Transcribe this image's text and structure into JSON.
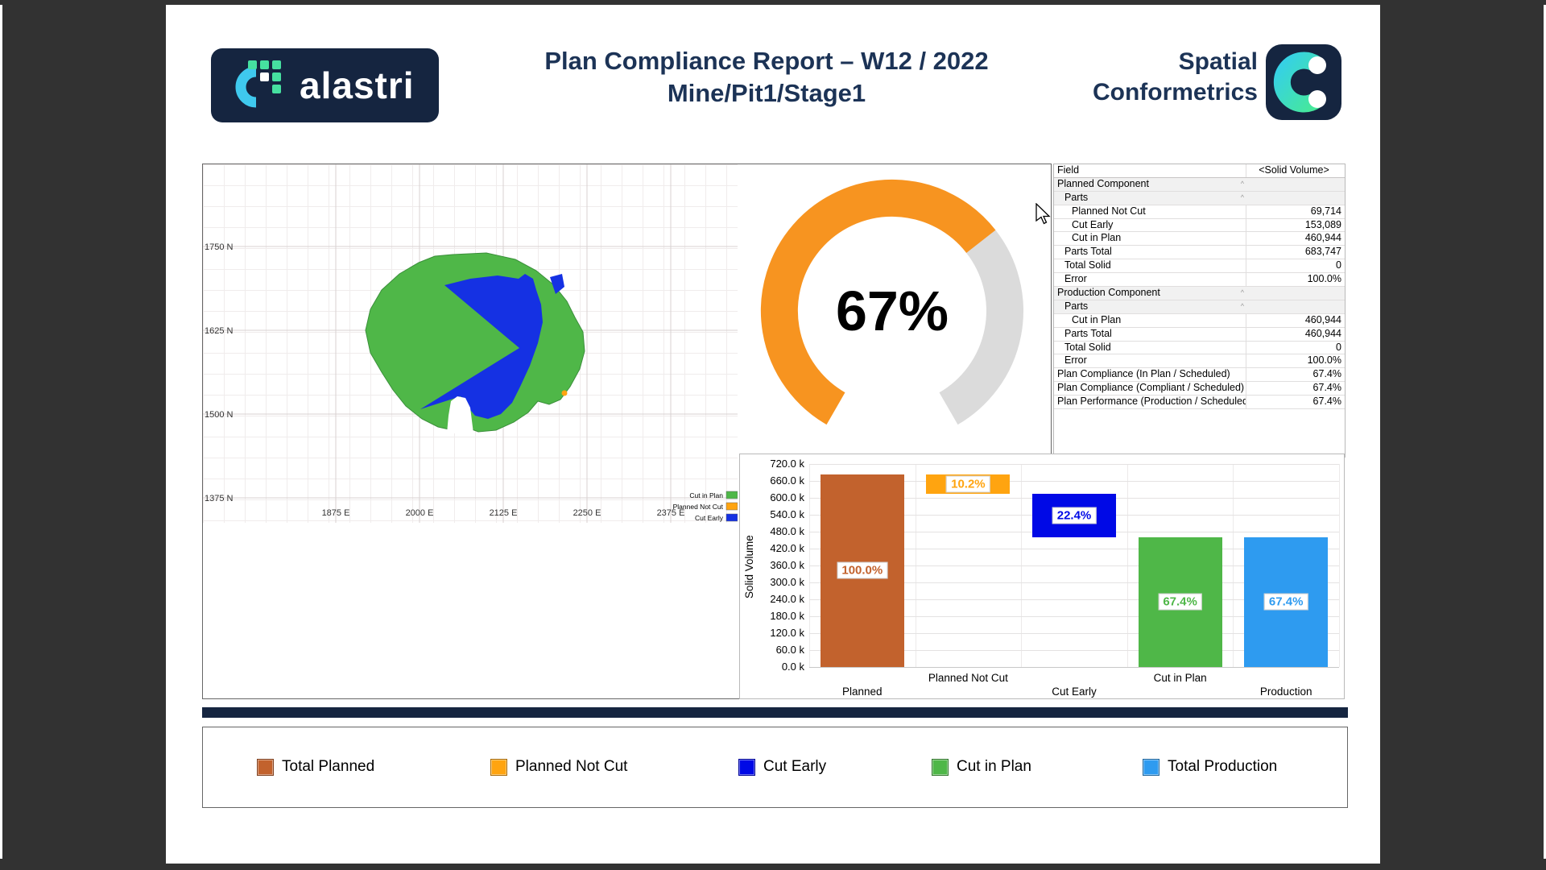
{
  "header": {
    "alastri_logo_text": "alastri",
    "title_line1": "Plan Compliance Report – W12 / 2022",
    "title_line2": "Mine/Pit1/Stage1",
    "brand_right_line1": "Spatial",
    "brand_right_line2": "Conformetrics",
    "navy_color": "#1C3356"
  },
  "map": {
    "y_ticks": [
      "1750 N",
      "1625 N",
      "1500 N",
      "1375 N"
    ],
    "x_ticks": [
      "1875 E",
      "2000 E",
      "2125 E",
      "2250 E",
      "2375 E"
    ],
    "legend": [
      {
        "label": "Cut in Plan",
        "color": "#4FB748"
      },
      {
        "label": "Planned Not Cut",
        "color": "#FFA410"
      },
      {
        "label": "Cut Early",
        "color": "#1531E3"
      }
    ],
    "pit_green": "#4FB748",
    "pit_blue": "#1531E3",
    "pit_orange": "#FFA410"
  },
  "table": {
    "header": {
      "field": "Field",
      "value": "<Solid Volume>"
    },
    "collapse_icon": "^",
    "rows": [
      {
        "label": "Planned Component",
        "value": "",
        "indent": 0,
        "group": true
      },
      {
        "label": "Parts",
        "value": "",
        "indent": 1,
        "group": true
      },
      {
        "label": "Planned Not Cut",
        "value": "69,714",
        "indent": 2
      },
      {
        "label": "Cut Early",
        "value": "153,089",
        "indent": 2
      },
      {
        "label": "Cut in Plan",
        "value": "460,944",
        "indent": 2
      },
      {
        "label": "Parts Total",
        "value": "683,747",
        "indent": 1
      },
      {
        "label": "Total Solid",
        "value": "0",
        "indent": 1
      },
      {
        "label": "Error",
        "value": "100.0%",
        "indent": 1
      },
      {
        "label": "Production Component",
        "value": "",
        "indent": 0,
        "group": true
      },
      {
        "label": "Parts",
        "value": "",
        "indent": 1,
        "group": true
      },
      {
        "label": "Cut in Plan",
        "value": "460,944",
        "indent": 2
      },
      {
        "label": "Parts Total",
        "value": "460,944",
        "indent": 1
      },
      {
        "label": "Total Solid",
        "value": "0",
        "indent": 1
      },
      {
        "label": "Error",
        "value": "100.0%",
        "indent": 1
      },
      {
        "label": "Plan Compliance (In Plan / Scheduled)",
        "value": "67.4%",
        "indent": 0
      },
      {
        "label": "Plan Compliance (Compliant / Scheduled)",
        "value": "67.4%",
        "indent": 0
      },
      {
        "label": "Plan Performance (Production / Scheduled)",
        "value": "67.4%",
        "indent": 0
      }
    ]
  },
  "chart_data": [
    {
      "type": "gauge",
      "display": "67%",
      "value_pct": 67.4,
      "color": "#F79420",
      "track": "#DBDBDB"
    },
    {
      "type": "bar",
      "title": "",
      "xlabel": "",
      "ylabel": "Solid Volume",
      "ylim": [
        0,
        720000
      ],
      "grid": true,
      "categories": [
        "Planned",
        "Planned Not Cut",
        "Cut Early",
        "Cut in Plan",
        "Production"
      ],
      "series": [
        {
          "name": "Solid Volume",
          "values": [
            683747,
            69714,
            153089,
            460944,
            460944
          ]
        }
      ],
      "bar_base": [
        0,
        614033,
        460944,
        0,
        0
      ],
      "bar_labels": [
        "100.0%",
        "10.2%",
        "22.4%",
        "67.4%",
        "67.4%"
      ],
      "values_pct": [
        100.0,
        10.2,
        22.4,
        67.4,
        67.4
      ],
      "colors": [
        "#C2622D",
        "#FFA410",
        "#0009E6",
        "#4FB748",
        "#2E9BF0"
      ],
      "waterfall": true,
      "ytick_labels": [
        "0.0 k",
        "60.0 k",
        "120.0 k",
        "180.0 k",
        "240.0 k",
        "300.0 k",
        "360.0 k",
        "420.0 k",
        "480.0 k",
        "540.0 k",
        "600.0 k",
        "660.0 k",
        "720.0 k"
      ]
    }
  ],
  "footer_legend": {
    "items": [
      {
        "label": "Total Planned",
        "color": "#C2622D"
      },
      {
        "label": "Planned Not Cut",
        "color": "#FFA410"
      },
      {
        "label": "Cut Early",
        "color": "#0009E6"
      },
      {
        "label": "Cut in Plan",
        "color": "#4FB748"
      },
      {
        "label": "Total Production",
        "color": "#2E9BF0"
      }
    ]
  }
}
